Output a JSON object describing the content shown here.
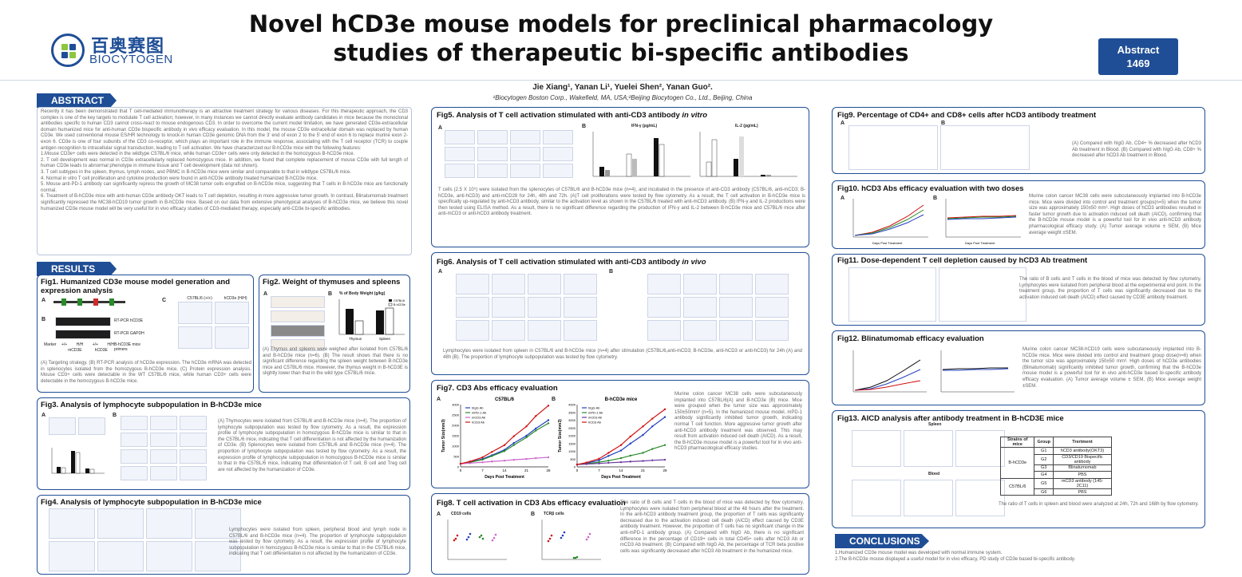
{
  "header": {
    "title_line1": "Novel hCD3e mouse models for preclinical pharmacology",
    "title_line2": "studies of therapeutic bi-specific antibodies",
    "logo_cn": "百奥赛图",
    "logo_en": "BIOCYTOGEN",
    "abstract_label": "Abstract",
    "abstract_number": "1469",
    "authors": "Jie Xiang¹, Yanan Li¹, Yuelei Shen², Yanan Guo².",
    "affiliations": "¹Biocytogen Boston Corp., Wakefield, MA, USA;²Beijing Biocytogen Co., Ltd., Beijing, China"
  },
  "sections": {
    "abstract": "ABSTRACT",
    "results": "RESULTS",
    "conclusions": "CONCLUSIONS"
  },
  "abstract": {
    "p1": "Recently it has been demonstrated that T cell-mediated immunotherapy is an attractive treatment strategy for various diseases. For this therapeutic approach, the CD3 complex is one of the key targets to modulate T cell activation; however, in many instances we cannot directly evaluate antibody candidates in mice because the monoclonal antibodies specific to human CD3 cannot cross-react to mouse endogenous CD3. In order to overcome the current model limitation, we have generated CD3e-extracellular domain humanized mice for anti-human CD3e bispecific antibody in vivo efficacy evaluation. In this model, the mouse CD3e extracellular domain was replaced by human CD3e. We used conventional mouse ES/HR technology to knock-in human CD3e genomic DNA from the 3' end of exon 2 to the 5' end of exon 6 to replace murine exon 2-exon 6. CD3e is one of four subunits of the CD3 co-receptor, which plays an important role in the immune response, associating with the T cell receptor (TCR) to couple antigen recognition to intracellular signal transduction, leading to T cell activation. We have characterized our B-hCD3e mice with the following features:",
    "p2": "1.Mouse CD3e+ cells were detected in the wildtype C57BL/6 mice, while human CD3e+ cells were only detected in the homozygous B-hCD3e mice.",
    "p3": "2. T cell development was normal in CD3e extracellularly replaced homozygous mice. In addition, we found that complete replacement of mouse CD3e with full length of human CD3e leads to abnormal phenotype in immune tissue and T cell development (data not shown).",
    "p4": "3. T cell subtypes in the spleen, thymus, lymph nodes, and PBMC in B-hCD3e mice were similar and comparable to that in wildtype C57BL/6 mice.",
    "p5": "4. Normal in vitro T cell proliferation and cytokine production were found in anti-hCD3e antibody treated humanized B-hCD3e mice.",
    "p6": "5. Mouse anti-PD-1 antibody can significantly repress the growth of MC38 tumor cells engrafted on B-hCD3e mice, suggesting that T cells in B-hCD3e mice are functionally normal.",
    "p7": "6. Treatment of B-hCD3e mice with anti-human CD3e antibody OKT leads to T cell depletion, resulting in more aggressive tumor growth. In contrast, Blinatumomab treatment significantly repressed the MC38-hCD19 tumor growth in B-hCD3e mice. Based on our data from extensive phenotypical analyses of B-hCD3e mice, we believe this novel humanized CD3e mouse model will be very useful for in vivo efficacy studies of CD3-mediated therapy, especially anti-CD3e bi-specific antibodies."
  },
  "figs": {
    "f1": {
      "title": "Fig1. Humanized CD3e mouse model generation and expression analysis",
      "caption": "(A) Targeting strategy. (B) RT-PCR analysis of hCD3e expression. The hCD3e mRNA was detected in splenocytes isolated from the homozygous B-hCD3e mice. (C) Protein expression analysis. Mouse CD3+ cells were detectable in the WT C57BL/6 mice, while human CD3+ cells were detectable in the homozygous B-hCD3e mice.",
      "gel1": "RT-PCR hCD3E",
      "gel2": "RT-PCR GAPDH",
      "gel_marker": "Marker",
      "gel_lanes": [
        "+/+",
        "H/H",
        "+/+",
        "H/H"
      ],
      "gel_groups": [
        "mCD3E",
        "hCD3E"
      ],
      "gel_right": "B-hCD3E mice primers",
      "flow_cols": [
        "C57BL/6 (+/+)",
        "hCD3e (H/H)"
      ]
    },
    "f2": {
      "title": "Fig2. Weight of thymuses and spleens",
      "caption": "(A) Thymus and spleens were weighed after isolated from C57BL/6 and B-hCD3e mice (n=6). (B) The result shows that there is no significant difference regarding the spleen weight between B-hCD3e mice and C57BL/6 mice. However, the thymus weight in B-hCD3E is slightly lower than that in the wild type C57BL/6 mice.",
      "chart_title": "% of Body Weight (g/kg)",
      "legend": [
        "C57BL/6",
        "B-hCD3e"
      ],
      "cats": [
        "Thymus",
        "Spleen"
      ]
    },
    "f3": {
      "title": "Fig3. Analysis of lymphocyte subpopulation in B-hCD3e mice",
      "caption": "(A) Thymocytes were isolated from C57BL/6 and B-hCD3e mice (n=4). The proportion of lymphocyte subpopulation was tested by flow cytometry. As a result, the expression profile of lymphocyte subpopulation in homozygous B-hCD3e mice is similar to that in the C57BL/6 mice, indicating that T cell differentiation is not affected by the humanization of CD3e. (B) Splenocytes were isolated from C57BL/6 and B-hCD3e mice (n=4). The proportion of lymphocyte subpopulation was tested by flow cytometry. As a result, the expression profile of lymphocyte subpopulation in homozygous B-hCD3e mice is similar to that in the C57BL/6 mice, indicating that differentiation of T cell, B cell and Treg cell are not affected by the humanization of CD3e."
    },
    "f4": {
      "title": "Fig4. Analysis of lymphocyte subpopulation in B-hCD3e mice",
      "caption": "Lymphocytes were isolated from spleen, peripheral blood and lymph node in C57BL/6 and B-hCD3e mice (n=4). The proportion of lymphocyte subpopulation was tested by flow cytometry. As a result, the expression profile of lymphocyte subpopulation in homozygous B-hCD3e mice is similar to that in the C57BL/6 mice, indicating that T cell differentiation is not affected by the humanization of CD3e."
    },
    "f5": {
      "title": "Fig5. Analysis of T cell activation stimulated with anti-CD3 antibody ",
      "title_em": "in vitro",
      "caption": "T cells (2.5 X 10⁵) were isolated from the splenocytes of C57BL/6 and B-hCD3e mice (n=4), and incubated in the presence of anti-CD3 antibody (C57BL/6, anti-mCD3; B-hCD3e, anti-hCD3) and anti-mCD28 for 24h, 48h and 72h. (A)T cell proliferations were tested by flow cytometry. As a result, the T cell activation in B-hCD3e mice is specifically up-regulated by anti-hCD3 antibody, similar to the activation level as shown in the C57BL/6 treated with anti-mCD3 antibody. (B) IFN-γ and IL-2 productions were then tested using ELISA method. As a result, there is no significant difference regarding the production of IFN-γ and IL-2 between B-hCD3e mice and C57BL/6 mice after anti-mCD3 or anti-hCD3 antibody treatment.",
      "chart1": "IFN-γ (pg/mL)",
      "chart2": "IL-2 (pg/mL)"
    },
    "f6": {
      "title": "Fig6. Analysis of T cell activation stimulated with anti-CD3 antibody ",
      "title_em": "in vivo",
      "caption": "Lymphocytes were isolated from spleen in C57BL/6 and B-hCD3e mice (n=4) after stimulation (C57BL/6,anti-mCD3; B-hCD3e, anti-hCD3 or anti-hCD3) for 24h (A) and 48h (B). The proportion of lymphocyte subpopulation was tested by flow cytometry."
    },
    "f7": {
      "title": "Fig7.  CD3 Abs efficacy evaluation",
      "caption": "Murine colon cancer MC38 cells were subcutaneously implanted into C57BL/6(A) and B-hCD3e (B) mice. Mice were grouped when the tumor size was approximately 150±50mm³ (n=5). In the humanized mouse model, mPD-1 antibody significantly inhibited tumor growth, indicating normal T cell function. More aggressive tumor growth after anti-hCD3 antibody treatment was observed. This may result from activation induced cell death (AICD). As a result, the B-hCD3e mouse model is a powerful tool for in vivo anti-hCD3 pharmacological efficacy studies."
    },
    "f8": {
      "title": "Fig8. T cell activation in CD3 Abs efficacy evaluation",
      "caption": "The ratio of B cells and T cells in the blood of mice was detected by flow cytometry. Lymphocytes were isolated from peripheral blood at the 48 hours after the treatment. In the anti-hCD3 antibody treatment group, the proportion of T cells was significantly decreased due to the activation induced cell death (AICD) effect caused by CD3E antibody treatment. However, the proportion of T cells has no significant change in the anti-mPD-1 antibody group. (A) Compared with hIgG Ab, there is no significant difference in the percentage of CD19+ cells in total CD45+ cells after hCD3 Ab or mCD3 Ab treatment. (B) Compared with hIgG Ab, the percentage of TCR beta positive cells was significantly decreased after hCD3 Ab treatment in the humanized mice.",
      "cA": "CD19 cells",
      "cB": "TCRβ cells"
    },
    "f9": {
      "title": "Fig9. Percentage of CD4+ and CD8+ cells after hCD3 antibody treatment",
      "caption": "(A) Compared with hIgG Ab, CD4+ % decreased after hCD3 Ab treatment in Blood. (B) Compared with hIgG Ab, CD8+ % decreased after hCD3 Ab treatment in Blood."
    },
    "f10": {
      "title": "Fig10. hCD3 Abs efficacy evaluation with two doses",
      "caption": "Murine colon cancer MC38 cells were subcutaneously implanted into B-hCD3e mice. Mice were divided into control and treatment groups(n=5) when the tumor size was approximately 150±50 mm³. High doses of hCD3 antibodies resulted in faster tumor growth due to activation induced cell death (AICD), confirming that the B-hCD3e mouse model is a powerful tool for in vivo anti-hCD3 antibody pharmacological efficacy study. (A) Tumor average volume ± SEM, (B) Mice average weight ±SEM.",
      "xlabel": "Days Post Treatment"
    },
    "f11": {
      "title": "Fig11. Dose-dependent T cell depletion caused by hCD3 Ab treatment",
      "caption": "The ratio of B cells and T cells in the blood of mice was detected by flow cytometry. Lymphocytes were isolated from peripheral blood at the experimental end point. In the treatment group, the proportion of T cells was significantly decreased due to the activation induced cell death (AICD) effect caused by CD3E antibody treatment."
    },
    "f12": {
      "title": "Fig12. Blinatumomab efficacy evaluation",
      "caption": "Murine colon cancer MC38-hCD19 cells were subcutaneously implanted into B-hCD3e mice. Mice were divided into control and treatment group dose(n=6) when the tumor size was approximately 150±50 mm³. High doses of hCD3e antibodies (Blinatumomab) significantly inhibited tumor growth, confirming that the B-hCD3e mouse model is a powerful tool for in vivo anti-hCD3e based bi-specific antibody efficacy evaluation. (A) Tumor average volume ± SEM, (B) Mice average weight ±SEM."
    },
    "f13": {
      "title": "Fig13. AICD analysis after antibody treatment in B-hCD3E mice",
      "caption": "The ratio of T cells in spleen and blood were analyzed at 24h,  72h and 168h by flow cytometry.",
      "spleen": "Spleen",
      "blood": "Blood",
      "table": {
        "headers": [
          "Strains of mice",
          "Group",
          "Trertment"
        ],
        "rows": [
          [
            "B-hCD3e",
            "G1",
            "hCD3 antibody(OKT3)"
          ],
          [
            "",
            "G2",
            "CD3/CD19 Bispecific antibody"
          ],
          [
            "",
            "G3",
            "Blinatumomab"
          ],
          [
            "",
            "G4",
            "PBS"
          ],
          [
            "C57BL/6",
            "G5",
            "mCD3 antibody (145-2C11)"
          ],
          [
            "",
            "G6",
            "PBS"
          ]
        ]
      }
    }
  },
  "conclusions": {
    "c1": "1.Humanized CD3e mouse model was developed with normal immune system.",
    "c2": "2.The B-hCD3e mouse displayed a useful model for in vivo efficacy, PD study of CD3e based bi-specific antibody."
  },
  "chart_data": [
    {
      "id": "fig7A",
      "type": "line",
      "title": "C57BL/6",
      "xlabel": "Days Post Treatment",
      "ylabel": "Tumor Size(mm3)",
      "x": [
        0,
        3,
        7,
        10,
        14,
        17,
        21,
        24,
        28
      ],
      "ylim": [
        0,
        3000
      ],
      "series": [
        {
          "name": "hIgG Ab",
          "color": "#1f3fbf",
          "values": [
            150,
            230,
            380,
            560,
            820,
            1150,
            1500,
            1850,
            2250
          ]
        },
        {
          "name": "mPD-1 Ab",
          "color": "#2a8a2a",
          "values": [
            150,
            220,
            350,
            520,
            760,
            1050,
            1420,
            1750,
            2100
          ]
        },
        {
          "name": "mCD3 Ab",
          "color": "#cc66cc",
          "values": [
            150,
            180,
            220,
            260,
            300,
            340,
            380,
            420,
            460
          ]
        },
        {
          "name": "hCD3 Ab",
          "color": "#d01010",
          "values": [
            150,
            260,
            460,
            720,
            1050,
            1480,
            1950,
            2450,
            2950
          ]
        }
      ]
    },
    {
      "id": "fig7B",
      "type": "line",
      "title": "B-hCD3e  mice",
      "xlabel": "Days Post Treatment",
      "ylabel": "Tumor Size(mm3)",
      "x": [
        0,
        3,
        7,
        10,
        14,
        17,
        21,
        24,
        28
      ],
      "ylim": [
        0,
        4000
      ],
      "series": [
        {
          "name": "hIgG Ab",
          "color": "#1f3fbf",
          "values": [
            150,
            240,
            420,
            700,
            1050,
            1500,
            2050,
            2600,
            3200
          ]
        },
        {
          "name": "mPD-1 Ab",
          "color": "#2a8a2a",
          "values": [
            150,
            200,
            300,
            400,
            560,
            720,
            900,
            1150,
            1400
          ]
        },
        {
          "name": "mCD3 Ab",
          "color": "#6a3aa0",
          "values": [
            150,
            180,
            220,
            260,
            300,
            340,
            380,
            420,
            460
          ]
        },
        {
          "name": "hCD3 Ab",
          "color": "#d01010",
          "values": [
            150,
            280,
            520,
            900,
            1400,
            1950,
            2600,
            3100,
            3700
          ]
        }
      ]
    },
    {
      "id": "fig2B",
      "type": "bar",
      "categories": [
        "Thymus",
        "Spleen"
      ],
      "series": [
        {
          "name": "C57BL/6",
          "values": [
            2.6,
            2.5
          ]
        },
        {
          "name": "B-hCD3e",
          "values": [
            1.4,
            2.7
          ]
        }
      ]
    }
  ]
}
